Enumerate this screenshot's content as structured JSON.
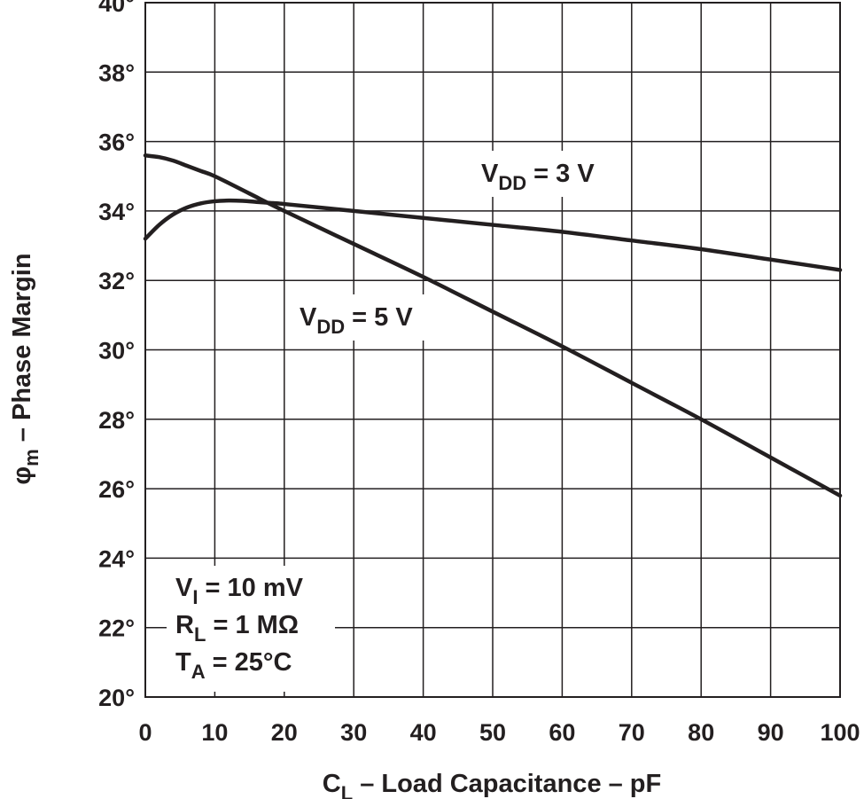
{
  "chart_data": {
    "type": "line",
    "title": "",
    "xlabel": {
      "main": "C",
      "sub": "L",
      "rest": " – Load Capacitance – pF"
    },
    "ylabel": {
      "main": "φ",
      "sub": "m",
      "rest": " – Phase Margin"
    },
    "xlim": [
      0,
      100
    ],
    "ylim": [
      20,
      40
    ],
    "x_ticks": [
      0,
      10,
      20,
      30,
      40,
      50,
      60,
      70,
      80,
      90,
      100
    ],
    "x_tick_labels": [
      "0",
      "10",
      "20",
      "30",
      "40",
      "50",
      "60",
      "70",
      "80",
      "90",
      "100"
    ],
    "y_ticks": [
      20,
      22,
      24,
      26,
      28,
      30,
      32,
      34,
      36,
      38,
      40
    ],
    "y_tick_labels": [
      "20°",
      "22°",
      "24°",
      "26°",
      "28°",
      "30°",
      "32°",
      "34°",
      "36°",
      "38°",
      "40°"
    ],
    "grid": true,
    "series": [
      {
        "name": "VDD = 3 V",
        "label_main": "V",
        "label_sub": "DD",
        "label_rest": " = 3 V",
        "x": [
          0,
          2,
          4,
          6,
          8,
          10,
          12,
          14,
          16,
          18,
          20,
          30,
          40,
          50,
          60,
          70,
          80,
          90,
          100
        ],
        "values": [
          33.2,
          33.6,
          33.9,
          34.1,
          34.22,
          34.28,
          34.3,
          34.29,
          34.26,
          34.23,
          34.2,
          34.0,
          33.8,
          33.6,
          33.4,
          33.15,
          32.9,
          32.6,
          32.3
        ]
      },
      {
        "name": "VDD = 5 V",
        "label_main": "V",
        "label_sub": "DD",
        "label_rest": " = 5 V",
        "x": [
          0,
          2,
          4,
          6,
          8,
          10,
          15,
          20,
          30,
          40,
          50,
          60,
          70,
          80,
          90,
          100
        ],
        "values": [
          35.6,
          35.55,
          35.45,
          35.3,
          35.15,
          35.0,
          34.5,
          34.0,
          33.05,
          32.1,
          31.1,
          30.1,
          29.05,
          28.0,
          26.9,
          25.8
        ]
      }
    ],
    "conditions": [
      {
        "main": "V",
        "sub": "I",
        "rest": " = 10 mV"
      },
      {
        "main": "R",
        "sub": "L",
        "rest": " = 1 MΩ"
      },
      {
        "main": "T",
        "sub": "A",
        "rest": " = 25°C"
      }
    ]
  }
}
